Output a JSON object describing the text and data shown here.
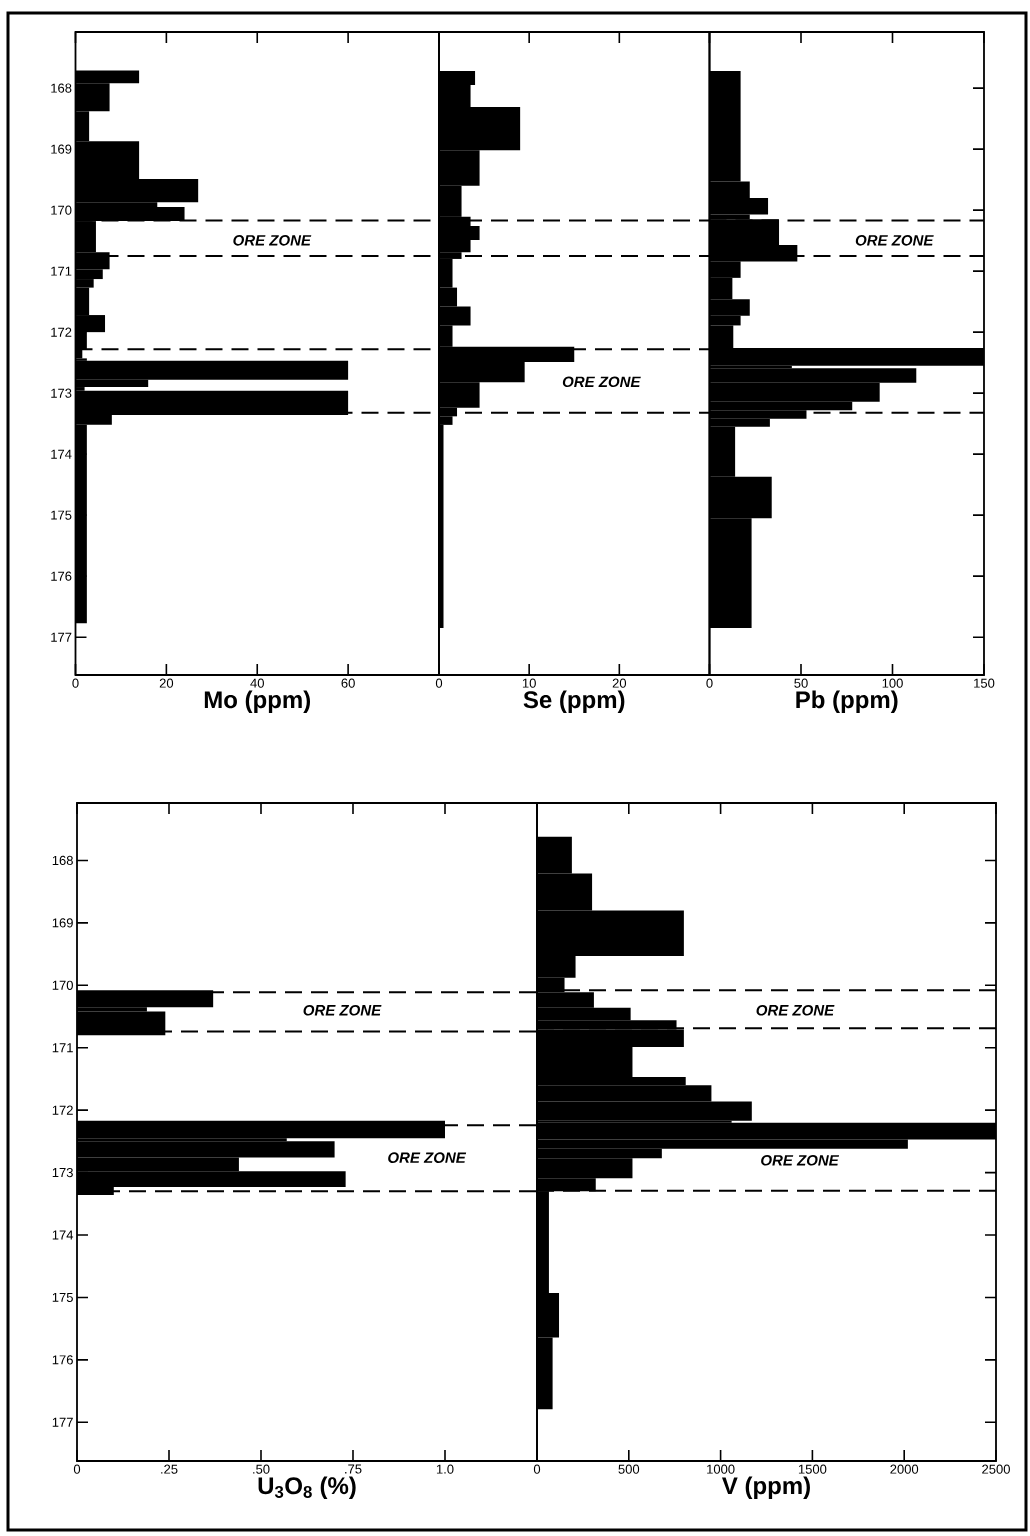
{
  "chart_data": [
    {
      "type": "histogram",
      "orientation": "horizontal",
      "xlabel": "Mo (ppm)",
      "color": "#000000",
      "bins": [
        167.71,
        167.92,
        168.38,
        168.87,
        169.49,
        169.87,
        169.95,
        170.18,
        170.69,
        170.97,
        171.13,
        171.27,
        171.72,
        172.0,
        172.28,
        172.43,
        172.47,
        172.78,
        172.9,
        172.96,
        173.36,
        173.52,
        176.77
      ],
      "values": [
        14,
        7.5,
        3,
        14,
        27,
        18,
        24,
        4.5,
        7.5,
        6,
        4,
        3,
        6.5,
        2.5,
        1.5,
        2.5,
        60,
        16,
        2,
        60,
        8,
        2.5
      ],
      "xlim": [
        0,
        80
      ],
      "xticks": [
        0,
        20,
        40,
        60
      ],
      "ylim": [
        177.62,
        167.08
      ],
      "yticks": [
        168,
        169,
        170,
        171,
        172,
        173,
        174,
        175,
        176,
        177
      ],
      "ref_lines": [
        {
          "axis": "y",
          "value": 170.17,
          "line_style": "dashed"
        },
        {
          "axis": "y",
          "value": 170.75,
          "line_style": "dashed"
        },
        {
          "axis": "y",
          "value": 172.28,
          "line_style": "dashed"
        },
        {
          "axis": "y",
          "value": 173.32,
          "line_style": "dashed"
        }
      ],
      "annotations": [
        "ORE ZONE"
      ]
    },
    {
      "type": "histogram",
      "orientation": "horizontal",
      "xlabel": "Se (ppm)",
      "color": "#000000",
      "bins": [
        167.72,
        167.95,
        168.31,
        169.02,
        169.6,
        170.11,
        170.26,
        170.49,
        170.69,
        170.8,
        171.27,
        171.58,
        171.89,
        172.24,
        172.49,
        172.82,
        173.24,
        173.38,
        173.52,
        176.85
      ],
      "values": [
        4,
        3.5,
        9,
        4.5,
        2.5,
        3.5,
        4.5,
        3.5,
        2.5,
        1.5,
        2,
        3.5,
        1.5,
        15,
        9.5,
        4.5,
        2,
        1.5,
        0.5
      ],
      "xlim": [
        0,
        30
      ],
      "xticks": [
        0,
        10,
        20
      ],
      "ylim": [
        177.62,
        167.08
      ],
      "tick_labels": "x",
      "ref_lines": [
        {
          "axis": "y",
          "value": 170.17,
          "line_style": "dashed"
        },
        {
          "axis": "y",
          "value": 170.75,
          "line_style": "dashed"
        },
        {
          "axis": "y",
          "value": 172.28,
          "line_style": "dashed"
        },
        {
          "axis": "y",
          "value": 173.32,
          "line_style": "dashed"
        }
      ],
      "annotations": [
        "ORE ZONE"
      ]
    },
    {
      "type": "histogram",
      "orientation": "horizontal",
      "xlabel": "Pb (ppm)",
      "color": "#000000",
      "bins": [
        167.72,
        169.53,
        169.8,
        170.07,
        170.15,
        170.57,
        170.84,
        171.11,
        171.46,
        171.73,
        171.89,
        172.26,
        172.55,
        172.59,
        172.83,
        173.14,
        173.28,
        173.42,
        173.55,
        174.37,
        175.05,
        176.85
      ],
      "values": [
        17,
        22,
        32,
        22,
        38,
        48,
        17,
        12.5,
        22,
        17,
        13,
        150,
        45,
        113,
        93,
        78,
        53,
        33,
        14,
        34,
        23
      ],
      "xlim": [
        0,
        150
      ],
      "xticks": [
        0,
        50,
        100,
        150
      ],
      "ylim": [
        177.62,
        167.08
      ],
      "yticks": [
        168,
        169,
        170,
        171,
        172,
        173,
        174,
        175,
        176,
        177
      ],
      "tick_labels": "x",
      "ref_lines": [
        {
          "axis": "y",
          "value": 170.17,
          "line_style": "dashed"
        },
        {
          "axis": "y",
          "value": 170.75,
          "line_style": "dashed"
        },
        {
          "axis": "y",
          "value": 173.32,
          "line_style": "dashed"
        }
      ],
      "annotations": [
        "ORE ZONE"
      ]
    },
    {
      "type": "histogram",
      "orientation": "horizontal",
      "xlabel": "U$_{3}$O$_{8}$ (%)",
      "color": "#000000",
      "bins": [
        170.08,
        170.35,
        170.42,
        170.8,
        172.17,
        172.45,
        172.5,
        172.76,
        172.98,
        173.23,
        173.36
      ],
      "values": [
        0.37,
        0.19,
        0.24,
        null,
        1.0,
        0.57,
        0.7,
        0.44,
        0.73,
        0.1
      ],
      "xlim": [
        0,
        1.25
      ],
      "xticks": [
        0,
        {
          "value": 0.25,
          "label": ".25"
        },
        {
          "value": 0.5,
          "label": ".50"
        },
        {
          "value": 0.75,
          "label": ".75"
        },
        {
          "value": 1.0,
          "label": "1.0"
        }
      ],
      "ylim": [
        177.62,
        167.08
      ],
      "yticks": [
        168,
        169,
        170,
        171,
        172,
        173,
        174,
        175,
        176,
        177
      ],
      "ref_lines": [
        {
          "axis": "y",
          "value": 170.11,
          "line_style": "dashed"
        },
        {
          "axis": "y",
          "value": 170.74,
          "line_style": "dashed"
        },
        {
          "axis": "y",
          "value": 172.24,
          "line_style": "dashed"
        },
        {
          "axis": "y",
          "value": 173.3,
          "line_style": "dashed"
        }
      ],
      "annotations": [
        "ORE ZONE",
        "ORE ZONE"
      ]
    },
    {
      "type": "histogram",
      "orientation": "horizontal",
      "xlabel": "V (ppm)",
      "color": "#000000",
      "bins": [
        167.62,
        168.21,
        168.8,
        169.53,
        169.88,
        170.11,
        170.36,
        170.56,
        170.71,
        170.99,
        171.47,
        171.6,
        171.86,
        172.17,
        172.2,
        172.47,
        172.62,
        172.77,
        173.09,
        173.3,
        174.93,
        175.64,
        176.79
      ],
      "values": [
        190,
        300,
        800,
        210,
        150,
        310,
        510,
        760,
        800,
        520,
        810,
        950,
        1170,
        1060,
        2500,
        2020,
        680,
        520,
        320,
        65,
        120,
        85
      ],
      "xlim": [
        0,
        2500
      ],
      "xticks": [
        0,
        500,
        1000,
        1500,
        2000,
        2500
      ],
      "ylim": [
        177.62,
        167.08
      ],
      "yticks": [
        168,
        169,
        170,
        171,
        172,
        173,
        174,
        175,
        176,
        177
      ],
      "tick_labels": "x",
      "ref_lines": [
        {
          "axis": "y",
          "value": 170.08,
          "line_style": "dashed"
        },
        {
          "axis": "y",
          "value": 170.69,
          "line_style": "dashed"
        },
        {
          "axis": "y",
          "value": 173.29,
          "line_style": "dashed"
        }
      ],
      "annotations": [
        "ORE ZONE",
        "ORE ZONE"
      ]
    }
  ]
}
